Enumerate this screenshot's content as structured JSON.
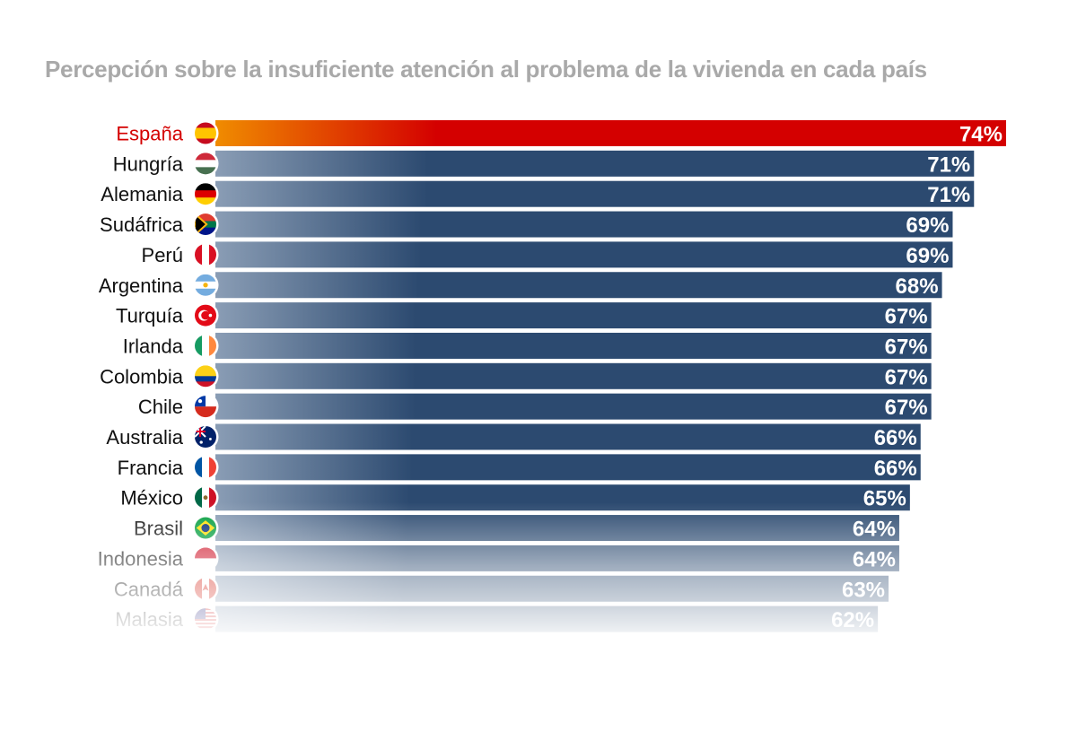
{
  "title": "Percepción sobre la insuficiente atención al problema de la vivienda en cada país",
  "chart_data": {
    "type": "bar",
    "orientation": "horizontal",
    "title": "Percepción sobre la insuficiente atención al problema de la vivienda en cada país",
    "unit": "%",
    "highlight": "España",
    "highlight_colors": [
      "#f08c00",
      "#d40000"
    ],
    "bar_color": "#2c4a70",
    "categories": [
      "España",
      "Hungría",
      "Alemania",
      "Sudáfrica",
      "Perú",
      "Argentina",
      "Turquía",
      "Irlanda",
      "Colombia",
      "Chile",
      "Australia",
      "Francia",
      "México",
      "Brasil",
      "Indonesia",
      "Canadá",
      "Malasia"
    ],
    "values": [
      74,
      71,
      71,
      69,
      69,
      68,
      67,
      67,
      67,
      67,
      66,
      66,
      65,
      64,
      64,
      63,
      62
    ],
    "flags": [
      "spain-flag-icon",
      "hungary-flag-icon",
      "germany-flag-icon",
      "south-africa-flag-icon",
      "peru-flag-icon",
      "argentina-flag-icon",
      "turkey-flag-icon",
      "ireland-flag-icon",
      "colombia-flag-icon",
      "chile-flag-icon",
      "australia-flag-icon",
      "france-flag-icon",
      "mexico-flag-icon",
      "brazil-flag-icon",
      "indonesia-flag-icon",
      "canada-flag-icon",
      "malaysia-flag-icon"
    ]
  }
}
